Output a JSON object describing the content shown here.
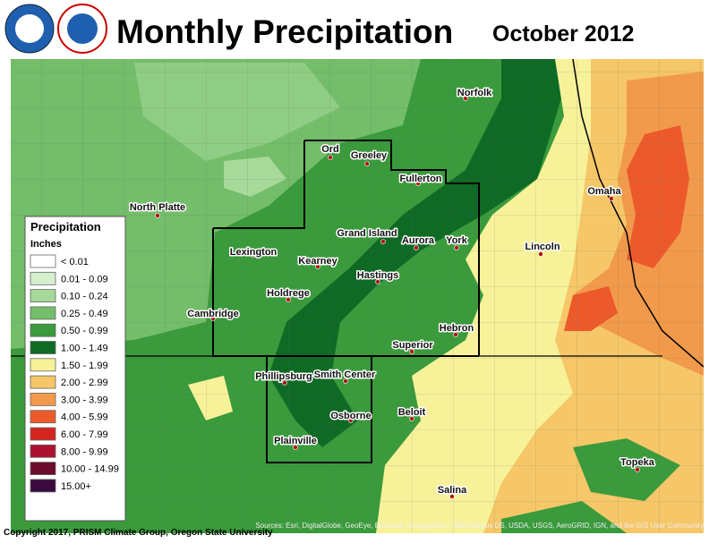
{
  "header": {
    "title": "Monthly Precipitation",
    "date": "October 2012"
  },
  "legend": {
    "title": "Precipitation",
    "units": "Inches",
    "items": [
      {
        "label": "< 0.01",
        "color": "#ffffff"
      },
      {
        "label": "0.01 - 0.09",
        "color": "#d6efcf"
      },
      {
        "label": "0.10 - 0.24",
        "color": "#a6d99a"
      },
      {
        "label": "0.25 - 0.49",
        "color": "#74bd6a"
      },
      {
        "label": "0.50 - 0.99",
        "color": "#3a9a3c"
      },
      {
        "label": "1.00 - 1.49",
        "color": "#0f6a25"
      },
      {
        "label": "1.50 - 1.99",
        "color": "#f7f29a"
      },
      {
        "label": "2.00 - 2.99",
        "color": "#f6c768"
      },
      {
        "label": "3.00 - 3.99",
        "color": "#f29a4b"
      },
      {
        "label": "4.00 - 5.99",
        "color": "#ec5a2c"
      },
      {
        "label": "6.00 - 7.99",
        "color": "#d4261f"
      },
      {
        "label": "8.00 - 9.99",
        "color": "#ad1030"
      },
      {
        "label": "10.00 - 14.99",
        "color": "#6c0b2b"
      },
      {
        "label": "15.00+",
        "color": "#3a0a40"
      }
    ]
  },
  "cities": [
    "North Platte",
    "Norfolk",
    "Ord",
    "Greeley",
    "Fullerton",
    "Grand Island",
    "Aurora",
    "York",
    "Lincoln",
    "Omaha",
    "Lexington",
    "Kearney",
    "Hastings",
    "Holdrege",
    "Cambridge",
    "Hebron",
    "Superior",
    "Phillipsburg",
    "Smith Center",
    "Osborne",
    "Beloit",
    "Plainville",
    "Salina",
    "Topeka"
  ],
  "footer": {
    "copyright": "Copyright 2017, PRISM Climate Group, Oregon State University",
    "sources": "Sources: Esri, DigitalGlobe, GeoEye, Earthstar Geographics, CNES/Airbus DS, USDA, USGS, AeroGRID, IGN, and the GIS User Community"
  }
}
